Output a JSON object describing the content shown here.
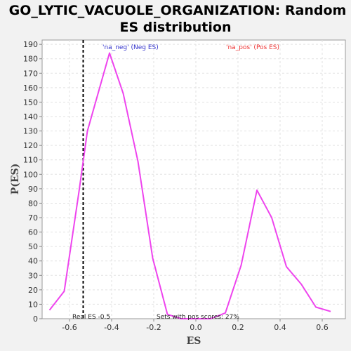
{
  "chart_data": {
    "type": "line",
    "title_line1": "GO_LYTIC_VACUOLE_ORGANIZATION: Random",
    "title_line2": "ES distribution",
    "xlabel": "ES",
    "ylabel": "P(ES)",
    "xlim": [
      -0.73,
      0.71
    ],
    "ylim": [
      0,
      193
    ],
    "xticks": [
      -0.6,
      -0.4,
      -0.2,
      0.0,
      0.2,
      0.4,
      0.6
    ],
    "xtick_labels": [
      "-0.6",
      "-0.4",
      "-0.2",
      "0.0",
      "0.2",
      "0.4",
      "0.6"
    ],
    "yticks": [
      0,
      10,
      20,
      30,
      40,
      50,
      60,
      70,
      80,
      90,
      100,
      110,
      120,
      130,
      140,
      150,
      160,
      170,
      180,
      190
    ],
    "grid": true,
    "series": [
      {
        "color": "#ee44ee",
        "x": [
          -0.695,
          -0.625,
          -0.555,
          -0.515,
          -0.41,
          -0.345,
          -0.275,
          -0.205,
          -0.135,
          -0.07,
          0.0,
          0.07,
          0.14,
          0.215,
          0.29,
          0.36,
          0.43,
          0.5,
          0.57,
          0.64
        ],
        "y": [
          6,
          19,
          88,
          130,
          184,
          156,
          109,
          42,
          3,
          0,
          0,
          0,
          4,
          37,
          89,
          70,
          36,
          24,
          8,
          5
        ]
      }
    ],
    "legend": [
      {
        "label": "'na_neg' (Neg ES)",
        "color": "#3333cc"
      },
      {
        "label": "'na_pos' (Pos ES)",
        "color": "#ee3333"
      }
    ],
    "real_es": {
      "value": -0.535,
      "label": "Real ES -0.5"
    },
    "annotation": "Sets with pos scores: 27%"
  }
}
